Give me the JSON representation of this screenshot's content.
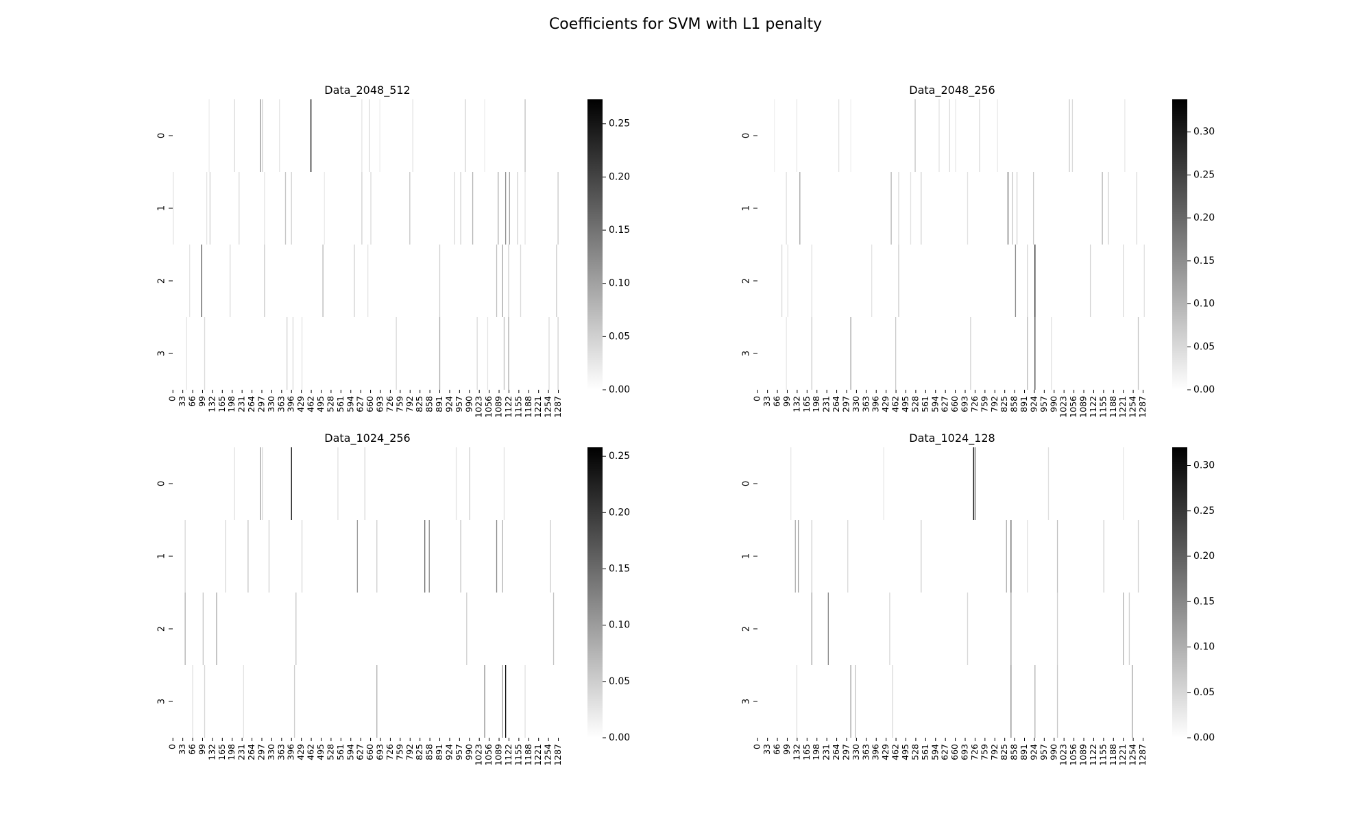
{
  "suptitle": "Coefficients for SVM with L1 penalty",
  "chart_data": [
    {
      "type": "heatmap",
      "title": "Data_2048_512",
      "rows": [
        "0",
        "1",
        "2",
        "3"
      ],
      "n_columns": 1300,
      "x_tick_labels": [
        "0",
        "33",
        "66",
        "99",
        "132",
        "165",
        "198",
        "231",
        "264",
        "297",
        "330",
        "363",
        "396",
        "429",
        "462",
        "495",
        "528",
        "561",
        "594",
        "627",
        "660",
        "693",
        "726",
        "759",
        "792",
        "825",
        "858",
        "891",
        "924",
        "957",
        "990",
        "1023",
        "1056",
        "1089",
        "1122",
        "1155",
        "1188",
        "1221",
        "1254",
        "1287"
      ],
      "colorbar_ticks": [
        0.0,
        0.05,
        0.1,
        0.15,
        0.2,
        0.25
      ],
      "colorbar_labels": [
        "0.00",
        "0.05",
        "0.10",
        "0.15",
        "0.20",
        "0.25"
      ],
      "vmin": 0.0,
      "vmax": 0.273,
      "colormap": "Greys (white = 0, black = max)",
      "nonzero_coefficients": [
        [
          [
            120,
            0.02
          ],
          [
            205,
            0.04
          ],
          [
            292,
            0.12
          ],
          [
            298,
            0.05
          ],
          [
            355,
            0.03
          ],
          [
            460,
            0.27
          ],
          [
            630,
            0.03
          ],
          [
            655,
            0.04
          ],
          [
            690,
            0.02
          ],
          [
            800,
            0.03
          ],
          [
            975,
            0.05
          ],
          [
            1040,
            0.02
          ],
          [
            1175,
            0.07
          ]
        ],
        [
          [
            0,
            0.03
          ],
          [
            112,
            0.03
          ],
          [
            123,
            0.05
          ],
          [
            220,
            0.04
          ],
          [
            305,
            0.03
          ],
          [
            375,
            0.06
          ],
          [
            395,
            0.05
          ],
          [
            505,
            0.02
          ],
          [
            630,
            0.05
          ],
          [
            660,
            0.04
          ],
          [
            790,
            0.06
          ],
          [
            940,
            0.04
          ],
          [
            960,
            0.05
          ],
          [
            1000,
            0.08
          ],
          [
            1085,
            0.09
          ],
          [
            1110,
            0.12
          ],
          [
            1123,
            0.1
          ],
          [
            1150,
            0.05
          ],
          [
            1175,
            0.03
          ],
          [
            1285,
            0.06
          ]
        ],
        [
          [
            55,
            0.03
          ],
          [
            95,
            0.18
          ],
          [
            190,
            0.04
          ],
          [
            305,
            0.06
          ],
          [
            500,
            0.08
          ],
          [
            605,
            0.05
          ],
          [
            650,
            0.03
          ],
          [
            890,
            0.05
          ],
          [
            1080,
            0.07
          ],
          [
            1100,
            0.1
          ],
          [
            1120,
            0.05
          ],
          [
            1160,
            0.04
          ],
          [
            1280,
            0.06
          ]
        ],
        [
          [
            45,
            0.03
          ],
          [
            105,
            0.04
          ],
          [
            380,
            0.05
          ],
          [
            400,
            0.04
          ],
          [
            430,
            0.03
          ],
          [
            745,
            0.04
          ],
          [
            890,
            0.09
          ],
          [
            1015,
            0.04
          ],
          [
            1050,
            0.03
          ],
          [
            1105,
            0.07
          ],
          [
            1120,
            0.09
          ],
          [
            1255,
            0.04
          ],
          [
            1285,
            0.05
          ]
        ]
      ]
    },
    {
      "type": "heatmap",
      "title": "Data_2048_256",
      "rows": [
        "0",
        "1",
        "2",
        "3"
      ],
      "n_columns": 1300,
      "x_tick_labels": [
        "0",
        "33",
        "66",
        "99",
        "132",
        "165",
        "198",
        "231",
        "264",
        "297",
        "330",
        "363",
        "396",
        "429",
        "462",
        "495",
        "528",
        "561",
        "594",
        "627",
        "660",
        "693",
        "726",
        "759",
        "792",
        "825",
        "858",
        "891",
        "924",
        "957",
        "990",
        "1023",
        "1056",
        "1089",
        "1122",
        "1155",
        "1188",
        "1221",
        "1254",
        "1287"
      ],
      "colorbar_ticks": [
        0.0,
        0.05,
        0.1,
        0.15,
        0.2,
        0.25,
        0.3
      ],
      "colorbar_labels": [
        "0.00",
        "0.05",
        "0.10",
        "0.15",
        "0.20",
        "0.25",
        "0.30"
      ],
      "vmin": 0.0,
      "vmax": 0.338,
      "colormap": "Greys (white = 0, black = max)",
      "nonzero_coefficients": [
        [
          [
            55,
            0.02
          ],
          [
            130,
            0.03
          ],
          [
            270,
            0.04
          ],
          [
            310,
            0.02
          ],
          [
            525,
            0.08
          ],
          [
            605,
            0.04
          ],
          [
            640,
            0.05
          ],
          [
            660,
            0.03
          ],
          [
            740,
            0.05
          ],
          [
            800,
            0.03
          ],
          [
            1040,
            0.07
          ],
          [
            1050,
            0.05
          ],
          [
            1225,
            0.03
          ]
        ],
        [
          [
            95,
            0.04
          ],
          [
            140,
            0.12
          ],
          [
            445,
            0.1
          ],
          [
            470,
            0.05
          ],
          [
            510,
            0.04
          ],
          [
            545,
            0.06
          ],
          [
            700,
            0.04
          ],
          [
            835,
            0.2
          ],
          [
            850,
            0.08
          ],
          [
            865,
            0.06
          ],
          [
            920,
            0.07
          ],
          [
            1150,
            0.1
          ],
          [
            1170,
            0.06
          ],
          [
            1265,
            0.05
          ]
        ],
        [
          [
            80,
            0.05
          ],
          [
            100,
            0.04
          ],
          [
            180,
            0.04
          ],
          [
            380,
            0.04
          ],
          [
            470,
            0.07
          ],
          [
            860,
            0.15
          ],
          [
            900,
            0.06
          ],
          [
            925,
            0.3
          ],
          [
            1110,
            0.06
          ],
          [
            1220,
            0.05
          ],
          [
            1290,
            0.04
          ]
        ],
        [
          [
            95,
            0.03
          ],
          [
            180,
            0.07
          ],
          [
            310,
            0.12
          ],
          [
            460,
            0.07
          ],
          [
            710,
            0.06
          ],
          [
            900,
            0.1
          ],
          [
            925,
            0.25
          ],
          [
            980,
            0.04
          ],
          [
            1270,
            0.08
          ]
        ]
      ]
    },
    {
      "type": "heatmap",
      "title": "Data_1024_256",
      "rows": [
        "0",
        "1",
        "2",
        "3"
      ],
      "n_columns": 1300,
      "x_tick_labels": [
        "0",
        "33",
        "66",
        "99",
        "132",
        "165",
        "198",
        "231",
        "264",
        "297",
        "330",
        "363",
        "396",
        "429",
        "462",
        "495",
        "528",
        "561",
        "594",
        "627",
        "660",
        "693",
        "726",
        "759",
        "792",
        "825",
        "858",
        "891",
        "924",
        "957",
        "990",
        "1023",
        "1056",
        "1089",
        "1122",
        "1155",
        "1188",
        "1221",
        "1254",
        "1287"
      ],
      "colorbar_ticks": [
        0.0,
        0.05,
        0.1,
        0.15,
        0.2,
        0.25
      ],
      "colorbar_labels": [
        "0.00",
        "0.05",
        "0.10",
        "0.15",
        "0.20",
        "0.25"
      ],
      "vmin": 0.0,
      "vmax": 0.258,
      "colormap": "Greys (white = 0, black = max)",
      "nonzero_coefficients": [
        [
          [
            205,
            0.03
          ],
          [
            292,
            0.1
          ],
          [
            298,
            0.04
          ],
          [
            395,
            0.25
          ],
          [
            550,
            0.03
          ],
          [
            640,
            0.04
          ],
          [
            945,
            0.03
          ],
          [
            990,
            0.05
          ],
          [
            1105,
            0.03
          ]
        ],
        [
          [
            40,
            0.04
          ],
          [
            175,
            0.04
          ],
          [
            250,
            0.06
          ],
          [
            320,
            0.05
          ],
          [
            430,
            0.04
          ],
          [
            615,
            0.1
          ],
          [
            680,
            0.05
          ],
          [
            840,
            0.15
          ],
          [
            855,
            0.12
          ],
          [
            960,
            0.06
          ],
          [
            1080,
            0.12
          ],
          [
            1100,
            0.08
          ],
          [
            1260,
            0.05
          ]
        ],
        [
          [
            40,
            0.08
          ],
          [
            100,
            0.06
          ],
          [
            145,
            0.09
          ],
          [
            410,
            0.06
          ],
          [
            980,
            0.05
          ],
          [
            1270,
            0.06
          ]
        ],
        [
          [
            65,
            0.03
          ],
          [
            105,
            0.04
          ],
          [
            235,
            0.03
          ],
          [
            405,
            0.05
          ],
          [
            680,
            0.08
          ],
          [
            1040,
            0.12
          ],
          [
            1100,
            0.1
          ],
          [
            1110,
            0.25
          ],
          [
            1175,
            0.03
          ]
        ]
      ]
    },
    {
      "type": "heatmap",
      "title": "Data_1024_128",
      "rows": [
        "0",
        "1",
        "2",
        "3"
      ],
      "n_columns": 1300,
      "x_tick_labels": [
        "0",
        "33",
        "66",
        "99",
        "132",
        "165",
        "198",
        "231",
        "264",
        "297",
        "330",
        "363",
        "396",
        "429",
        "462",
        "495",
        "528",
        "561",
        "594",
        "627",
        "660",
        "693",
        "726",
        "759",
        "792",
        "825",
        "858",
        "891",
        "924",
        "957",
        "990",
        "1023",
        "1056",
        "1089",
        "1122",
        "1155",
        "1188",
        "1221",
        "1254",
        "1287"
      ],
      "colorbar_ticks": [
        0.0,
        0.05,
        0.1,
        0.15,
        0.2,
        0.25,
        0.3
      ],
      "colorbar_labels": [
        "0.00",
        "0.05",
        "0.10",
        "0.15",
        "0.20",
        "0.25",
        "0.30"
      ],
      "vmin": 0.0,
      "vmax": 0.32,
      "colormap": "Greys (white = 0, black = max)",
      "nonzero_coefficients": [
        [
          [
            110,
            0.03
          ],
          [
            420,
            0.03
          ],
          [
            720,
            0.32
          ],
          [
            725,
            0.2
          ],
          [
            970,
            0.04
          ],
          [
            1220,
            0.03
          ]
        ],
        [
          [
            125,
            0.1
          ],
          [
            135,
            0.12
          ],
          [
            180,
            0.06
          ],
          [
            300,
            0.05
          ],
          [
            545,
            0.06
          ],
          [
            830,
            0.1
          ],
          [
            845,
            0.2
          ],
          [
            900,
            0.04
          ],
          [
            1000,
            0.08
          ],
          [
            1155,
            0.06
          ],
          [
            1270,
            0.06
          ]
        ],
        [
          [
            180,
            0.12
          ],
          [
            235,
            0.15
          ],
          [
            440,
            0.05
          ],
          [
            700,
            0.05
          ],
          [
            845,
            0.12
          ],
          [
            1000,
            0.06
          ],
          [
            1220,
            0.1
          ],
          [
            1240,
            0.06
          ]
        ],
        [
          [
            130,
            0.04
          ],
          [
            310,
            0.12
          ],
          [
            325,
            0.08
          ],
          [
            450,
            0.05
          ],
          [
            845,
            0.15
          ],
          [
            925,
            0.1
          ],
          [
            1000,
            0.07
          ],
          [
            1250,
            0.12
          ]
        ]
      ]
    }
  ]
}
